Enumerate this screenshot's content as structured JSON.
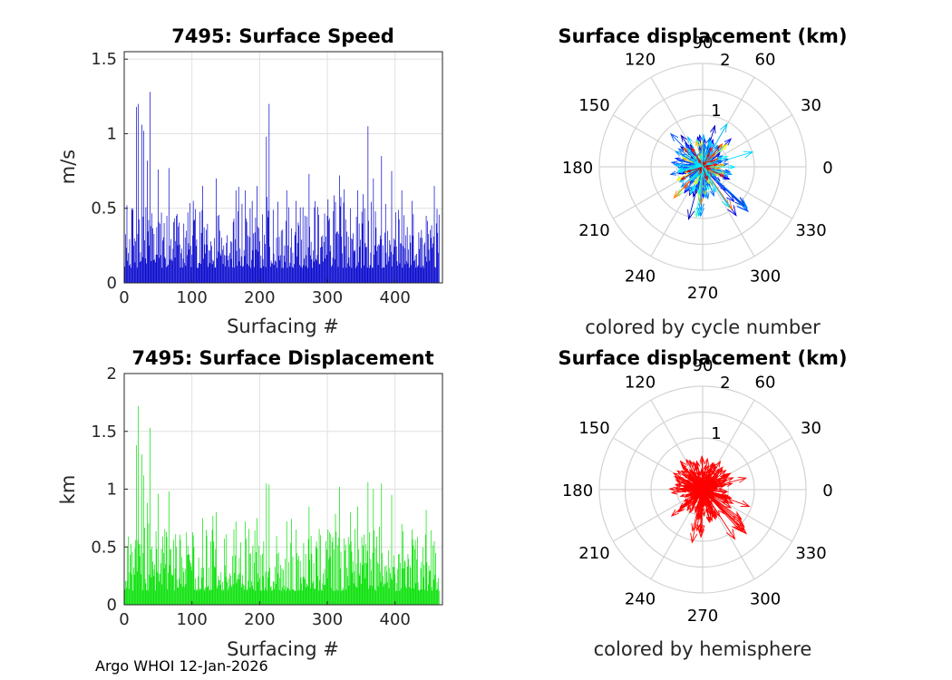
{
  "footer": "Argo WHOI 12-Jan-2026",
  "chart_data": [
    {
      "type": "bar",
      "title": "7495: Surface Speed",
      "xlabel": "Surfacing #",
      "ylabel": "m/s",
      "xlim": [
        0,
        470
      ],
      "ylim": [
        0,
        1.55
      ],
      "xticks": [
        "0",
        "100",
        "200",
        "300",
        "400"
      ],
      "yticks": [
        "0",
        "0.5",
        "1",
        "1.5"
      ],
      "color": "#0000cc",
      "grid": true,
      "peaks": [
        {
          "x": 18,
          "y": 1.18
        },
        {
          "x": 21,
          "y": 1.2
        },
        {
          "x": 26,
          "y": 1.06
        },
        {
          "x": 29,
          "y": 1.02
        },
        {
          "x": 34,
          "y": 0.82
        },
        {
          "x": 38,
          "y": 1.28
        },
        {
          "x": 50,
          "y": 0.76
        },
        {
          "x": 66,
          "y": 0.77
        },
        {
          "x": 77,
          "y": 0.45
        },
        {
          "x": 102,
          "y": 0.55
        },
        {
          "x": 116,
          "y": 0.65
        },
        {
          "x": 136,
          "y": 0.7
        },
        {
          "x": 165,
          "y": 0.62
        },
        {
          "x": 179,
          "y": 0.62
        },
        {
          "x": 196,
          "y": 0.65
        },
        {
          "x": 210,
          "y": 0.98
        },
        {
          "x": 214,
          "y": 1.2
        },
        {
          "x": 240,
          "y": 0.62
        },
        {
          "x": 254,
          "y": 0.55
        },
        {
          "x": 273,
          "y": 0.73
        },
        {
          "x": 301,
          "y": 0.56
        },
        {
          "x": 318,
          "y": 0.72
        },
        {
          "x": 334,
          "y": 0.5
        },
        {
          "x": 345,
          "y": 0.62
        },
        {
          "x": 360,
          "y": 1.05
        },
        {
          "x": 368,
          "y": 0.7
        },
        {
          "x": 380,
          "y": 0.85
        },
        {
          "x": 395,
          "y": 0.75
        },
        {
          "x": 410,
          "y": 0.62
        },
        {
          "x": 425,
          "y": 0.55
        },
        {
          "x": 446,
          "y": 0.45
        },
        {
          "x": 458,
          "y": 0.65
        }
      ]
    },
    {
      "type": "bar",
      "title": "7495: Surface Displacement",
      "xlabel": "Surfacing #",
      "ylabel": "km",
      "xlim": [
        0,
        470
      ],
      "ylim": [
        0,
        2
      ],
      "xticks": [
        "0",
        "100",
        "200",
        "300",
        "400"
      ],
      "yticks": [
        "0",
        "0.5",
        "1",
        "1.5",
        "2"
      ],
      "color": "#00e000",
      "grid": true,
      "peaks": [
        {
          "x": 18,
          "y": 1.38
        },
        {
          "x": 21,
          "y": 1.72
        },
        {
          "x": 26,
          "y": 1.3
        },
        {
          "x": 29,
          "y": 1.12
        },
        {
          "x": 34,
          "y": 0.88
        },
        {
          "x": 38,
          "y": 1.53
        },
        {
          "x": 50,
          "y": 0.96
        },
        {
          "x": 66,
          "y": 0.98
        },
        {
          "x": 77,
          "y": 0.5
        },
        {
          "x": 102,
          "y": 0.6
        },
        {
          "x": 116,
          "y": 0.75
        },
        {
          "x": 136,
          "y": 0.8
        },
        {
          "x": 165,
          "y": 0.72
        },
        {
          "x": 179,
          "y": 0.72
        },
        {
          "x": 196,
          "y": 0.75
        },
        {
          "x": 210,
          "y": 1.05
        },
        {
          "x": 214,
          "y": 1.04
        },
        {
          "x": 240,
          "y": 0.72
        },
        {
          "x": 254,
          "y": 0.65
        },
        {
          "x": 273,
          "y": 0.85
        },
        {
          "x": 301,
          "y": 0.65
        },
        {
          "x": 318,
          "y": 1.02
        },
        {
          "x": 334,
          "y": 0.8
        },
        {
          "x": 345,
          "y": 0.85
        },
        {
          "x": 360,
          "y": 1.06
        },
        {
          "x": 368,
          "y": 1.0
        },
        {
          "x": 380,
          "y": 1.05
        },
        {
          "x": 395,
          "y": 0.95
        },
        {
          "x": 410,
          "y": 0.7
        },
        {
          "x": 425,
          "y": 0.65
        },
        {
          "x": 446,
          "y": 0.82
        },
        {
          "x": 458,
          "y": 0.55
        }
      ]
    },
    {
      "type": "polar",
      "title": "Surface displacement (km)",
      "xlabel": "colored by cycle number",
      "rmax": 2,
      "rtick_labels": [
        "1",
        "2"
      ],
      "angle_labels": [
        "0",
        "30",
        "60",
        "90",
        "120",
        "150",
        "180",
        "210",
        "240",
        "270",
        "300",
        "330"
      ],
      "coloring": "cycle"
    },
    {
      "type": "polar",
      "title": "Surface displacement (km)",
      "xlabel": "colored by hemisphere",
      "rmax": 2,
      "rtick_labels": [
        "1",
        "2"
      ],
      "angle_labels": [
        "0",
        "30",
        "60",
        "90",
        "120",
        "150",
        "180",
        "210",
        "240",
        "270",
        "300",
        "330"
      ],
      "coloring": "hemisphere",
      "color": "#ff0000"
    }
  ]
}
